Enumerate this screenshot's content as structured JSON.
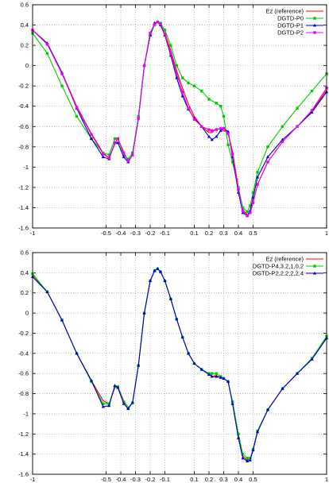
{
  "chart_data": [
    {
      "type": "line",
      "title": "",
      "xlabel": "",
      "ylabel": "",
      "xlim": [
        -1,
        1
      ],
      "ylim": [
        -1.6,
        0.6
      ],
      "xticks": [
        -1,
        -0.5,
        -0.4,
        -0.3,
        -0.2,
        -0.1,
        0.1,
        0.2,
        0.3,
        0.4,
        0.5,
        1
      ],
      "yticks": [
        0.6,
        0.4,
        0.2,
        0,
        -0.2,
        -0.4,
        -0.6,
        -0.8,
        -1,
        -1.2,
        -1.4,
        -1.6
      ],
      "xtick_labels": [
        "-1",
        "-0.5",
        "-0.4",
        "-0.3",
        "-0.2",
        "-0.1",
        "0.1",
        "0.2",
        "0.3",
        "0.4",
        "0.5",
        "1"
      ],
      "ytick_labels": [
        "0.6",
        "0.4",
        "0.2",
        "0",
        "-0.2",
        "-0.4",
        "-0.6",
        "-0.8",
        "-1",
        "-1.2",
        "-1.4",
        "-1.6"
      ],
      "grid": true,
      "legend_position": "top-right",
      "series": [
        {
          "name": "Ez (reference)",
          "color": "#ff0000",
          "marker": "none",
          "x": [
            -1,
            -0.9,
            -0.8,
            -0.7,
            -0.6,
            -0.52,
            -0.48,
            -0.44,
            -0.42,
            -0.38,
            -0.35,
            -0.32,
            -0.28,
            -0.24,
            -0.2,
            -0.17,
            -0.15,
            -0.13,
            -0.1,
            -0.06,
            -0.02,
            0.02,
            0.06,
            0.1,
            0.15,
            0.2,
            0.22,
            0.25,
            0.28,
            0.3,
            0.33,
            0.36,
            0.4,
            0.43,
            0.46,
            0.48,
            0.5,
            0.53,
            0.6,
            0.7,
            0.8,
            0.9,
            1
          ],
          "y": [
            0.35,
            0.22,
            -0.07,
            -0.4,
            -0.67,
            -0.86,
            -0.91,
            -0.77,
            -0.72,
            -0.85,
            -0.94,
            -0.88,
            -0.52,
            0.0,
            0.32,
            0.41,
            0.43,
            0.41,
            0.32,
            0.15,
            -0.05,
            -0.22,
            -0.38,
            -0.5,
            -0.6,
            -0.66,
            -0.66,
            -0.62,
            -0.63,
            -0.64,
            -0.66,
            -0.85,
            -1.2,
            -1.42,
            -1.47,
            -1.45,
            -1.35,
            -1.17,
            -0.95,
            -0.75,
            -0.6,
            -0.45,
            -0.24
          ]
        },
        {
          "name": "DGTD-P0",
          "color": "#00cc00",
          "marker": "square",
          "x": [
            -1,
            -0.9,
            -0.8,
            -0.7,
            -0.6,
            -0.52,
            -0.48,
            -0.44,
            -0.42,
            -0.38,
            -0.35,
            -0.32,
            -0.28,
            -0.24,
            -0.2,
            -0.17,
            -0.15,
            -0.13,
            -0.1,
            -0.06,
            -0.02,
            0.02,
            0.06,
            0.1,
            0.15,
            0.2,
            0.25,
            0.28,
            0.3,
            0.33,
            0.36,
            0.4,
            0.43,
            0.46,
            0.48,
            0.5,
            0.53,
            0.6,
            0.7,
            0.8,
            0.9,
            1
          ],
          "y": [
            0.32,
            0.12,
            -0.2,
            -0.5,
            -0.72,
            -0.86,
            -0.88,
            -0.72,
            -0.72,
            -0.88,
            -0.92,
            -0.86,
            -0.5,
            0.0,
            0.3,
            0.4,
            0.43,
            0.42,
            0.35,
            0.2,
            0.0,
            -0.12,
            -0.17,
            -0.2,
            -0.25,
            -0.33,
            -0.37,
            -0.4,
            -0.5,
            -0.78,
            -0.95,
            -1.2,
            -1.4,
            -1.44,
            -1.38,
            -1.25,
            -1.05,
            -0.8,
            -0.6,
            -0.42,
            -0.25,
            -0.08
          ]
        },
        {
          "name": "DGTD-P1",
          "color": "#0000cc",
          "marker": "triangle",
          "x": [
            -1,
            -0.9,
            -0.8,
            -0.7,
            -0.6,
            -0.52,
            -0.48,
            -0.44,
            -0.42,
            -0.38,
            -0.35,
            -0.32,
            -0.28,
            -0.24,
            -0.2,
            -0.17,
            -0.15,
            -0.13,
            -0.1,
            -0.06,
            -0.02,
            0.02,
            0.06,
            0.1,
            0.15,
            0.2,
            0.22,
            0.25,
            0.28,
            0.3,
            0.33,
            0.36,
            0.4,
            0.43,
            0.46,
            0.48,
            0.5,
            0.53,
            0.6,
            0.7,
            0.8,
            0.9,
            1
          ],
          "y": [
            0.35,
            0.22,
            -0.07,
            -0.42,
            -0.72,
            -0.9,
            -0.92,
            -0.76,
            -0.76,
            -0.9,
            -0.95,
            -0.88,
            -0.52,
            0.0,
            0.3,
            0.42,
            0.43,
            0.4,
            0.3,
            0.1,
            -0.12,
            -0.3,
            -0.43,
            -0.52,
            -0.6,
            -0.7,
            -0.73,
            -0.7,
            -0.64,
            -0.62,
            -0.65,
            -0.9,
            -1.25,
            -1.45,
            -1.48,
            -1.43,
            -1.3,
            -1.1,
            -0.9,
            -0.73,
            -0.6,
            -0.46,
            -0.26
          ]
        },
        {
          "name": "DGTD-P2",
          "color": "#ee00ee",
          "marker": "square",
          "x": [
            -1,
            -0.9,
            -0.8,
            -0.7,
            -0.6,
            -0.52,
            -0.48,
            -0.44,
            -0.42,
            -0.38,
            -0.35,
            -0.32,
            -0.28,
            -0.24,
            -0.2,
            -0.17,
            -0.15,
            -0.13,
            -0.1,
            -0.06,
            -0.02,
            0.02,
            0.06,
            0.1,
            0.15,
            0.2,
            0.22,
            0.25,
            0.28,
            0.3,
            0.33,
            0.36,
            0.4,
            0.43,
            0.46,
            0.48,
            0.5,
            0.53,
            0.6,
            0.7,
            0.8,
            0.9,
            1
          ],
          "y": [
            0.35,
            0.21,
            -0.08,
            -0.41,
            -0.68,
            -0.87,
            -0.91,
            -0.76,
            -0.72,
            -0.86,
            -0.94,
            -0.88,
            -0.52,
            0.0,
            0.32,
            0.41,
            0.43,
            0.41,
            0.31,
            0.12,
            -0.08,
            -0.26,
            -0.42,
            -0.53,
            -0.6,
            -0.63,
            -0.64,
            -0.63,
            -0.62,
            -0.62,
            -0.67,
            -0.87,
            -1.22,
            -1.43,
            -1.48,
            -1.45,
            -1.35,
            -1.17,
            -0.95,
            -0.75,
            -0.6,
            -0.44,
            -0.22
          ]
        }
      ]
    },
    {
      "type": "line",
      "title": "",
      "xlabel": "",
      "ylabel": "",
      "xlim": [
        -1,
        1
      ],
      "ylim": [
        -1.6,
        0.6
      ],
      "xticks": [
        -1,
        -0.5,
        -0.4,
        -0.3,
        -0.2,
        -0.1,
        0.1,
        0.2,
        0.3,
        0.4,
        0.5,
        1
      ],
      "yticks": [
        0.6,
        0.4,
        0.2,
        0,
        -0.2,
        -0.4,
        -0.6,
        -0.8,
        -1,
        -1.2,
        -1.4,
        -1.6
      ],
      "xtick_labels": [
        "-1",
        "-0.5",
        "-0.4",
        "-0.3",
        "-0.2",
        "-0.1",
        "0.1",
        "0.2",
        "0.3",
        "0.4",
        "0.5",
        "1"
      ],
      "ytick_labels": [
        "0.6",
        "0.4",
        "0.2",
        "0",
        "-0.2",
        "-0.4",
        "-0.6",
        "-0.8",
        "-1",
        "-1.2",
        "-1.4",
        "-1.6"
      ],
      "grid": true,
      "legend_position": "top-right",
      "series": [
        {
          "name": "Ez (reference)",
          "color": "#ff0000",
          "marker": "none",
          "x": [
            -1,
            -0.9,
            -0.8,
            -0.7,
            -0.6,
            -0.52,
            -0.48,
            -0.44,
            -0.42,
            -0.38,
            -0.35,
            -0.32,
            -0.28,
            -0.24,
            -0.2,
            -0.17,
            -0.15,
            -0.13,
            -0.1,
            -0.06,
            -0.02,
            0.02,
            0.06,
            0.1,
            0.15,
            0.2,
            0.22,
            0.25,
            0.28,
            0.3,
            0.33,
            0.36,
            0.4,
            0.43,
            0.46,
            0.48,
            0.5,
            0.53,
            0.6,
            0.7,
            0.8,
            0.9,
            1
          ],
          "y": [
            0.38,
            0.21,
            -0.07,
            -0.4,
            -0.67,
            -0.87,
            -0.9,
            -0.74,
            -0.73,
            -0.87,
            -0.94,
            -0.89,
            -0.52,
            0.0,
            0.32,
            0.42,
            0.44,
            0.41,
            0.32,
            0.14,
            -0.06,
            -0.24,
            -0.4,
            -0.5,
            -0.56,
            -0.6,
            -0.63,
            -0.62,
            -0.64,
            -0.65,
            -0.68,
            -0.88,
            -1.22,
            -1.42,
            -1.46,
            -1.45,
            -1.35,
            -1.17,
            -0.96,
            -0.75,
            -0.6,
            -0.45,
            -0.24
          ]
        },
        {
          "name": "DGTD-P4,3,2,1,0,2",
          "color": "#00cc00",
          "marker": "square",
          "x": [
            -1,
            -0.9,
            -0.8,
            -0.7,
            -0.6,
            -0.52,
            -0.48,
            -0.44,
            -0.42,
            -0.38,
            -0.35,
            -0.32,
            -0.28,
            -0.24,
            -0.2,
            -0.17,
            -0.15,
            -0.13,
            -0.1,
            -0.06,
            -0.02,
            0.02,
            0.06,
            0.1,
            0.15,
            0.2,
            0.22,
            0.25,
            0.28,
            0.3,
            0.33,
            0.36,
            0.4,
            0.43,
            0.46,
            0.48,
            0.5,
            0.53,
            0.6,
            0.7,
            0.8,
            0.9,
            1
          ],
          "y": [
            0.39,
            0.21,
            -0.07,
            -0.4,
            -0.68,
            -0.9,
            -0.9,
            -0.73,
            -0.73,
            -0.88,
            -0.94,
            -0.89,
            -0.52,
            0.0,
            0.32,
            0.42,
            0.44,
            0.41,
            0.32,
            0.14,
            -0.06,
            -0.24,
            -0.4,
            -0.5,
            -0.56,
            -0.6,
            -0.6,
            -0.6,
            -0.63,
            -0.65,
            -0.68,
            -0.88,
            -1.2,
            -1.4,
            -1.44,
            -1.44,
            -1.35,
            -1.17,
            -0.96,
            -0.75,
            -0.6,
            -0.45,
            -0.23
          ]
        },
        {
          "name": "DGTD-P2,2,2,2,2,4",
          "color": "#0000cc",
          "marker": "triangle",
          "x": [
            -1,
            -0.9,
            -0.8,
            -0.7,
            -0.6,
            -0.52,
            -0.48,
            -0.44,
            -0.42,
            -0.38,
            -0.35,
            -0.32,
            -0.28,
            -0.24,
            -0.2,
            -0.17,
            -0.15,
            -0.13,
            -0.1,
            -0.06,
            -0.02,
            0.02,
            0.06,
            0.1,
            0.15,
            0.2,
            0.22,
            0.25,
            0.28,
            0.3,
            0.33,
            0.36,
            0.4,
            0.43,
            0.46,
            0.48,
            0.5,
            0.53,
            0.6,
            0.7,
            0.8,
            0.9,
            1
          ],
          "y": [
            0.36,
            0.21,
            -0.07,
            -0.4,
            -0.67,
            -0.93,
            -0.92,
            -0.72,
            -0.74,
            -0.9,
            -0.95,
            -0.89,
            -0.52,
            0.0,
            0.32,
            0.42,
            0.44,
            0.41,
            0.32,
            0.14,
            -0.06,
            -0.24,
            -0.4,
            -0.5,
            -0.56,
            -0.61,
            -0.63,
            -0.63,
            -0.64,
            -0.65,
            -0.68,
            -0.9,
            -1.24,
            -1.44,
            -1.47,
            -1.46,
            -1.36,
            -1.18,
            -0.96,
            -0.75,
            -0.6,
            -0.46,
            -0.25
          ]
        }
      ]
    }
  ]
}
